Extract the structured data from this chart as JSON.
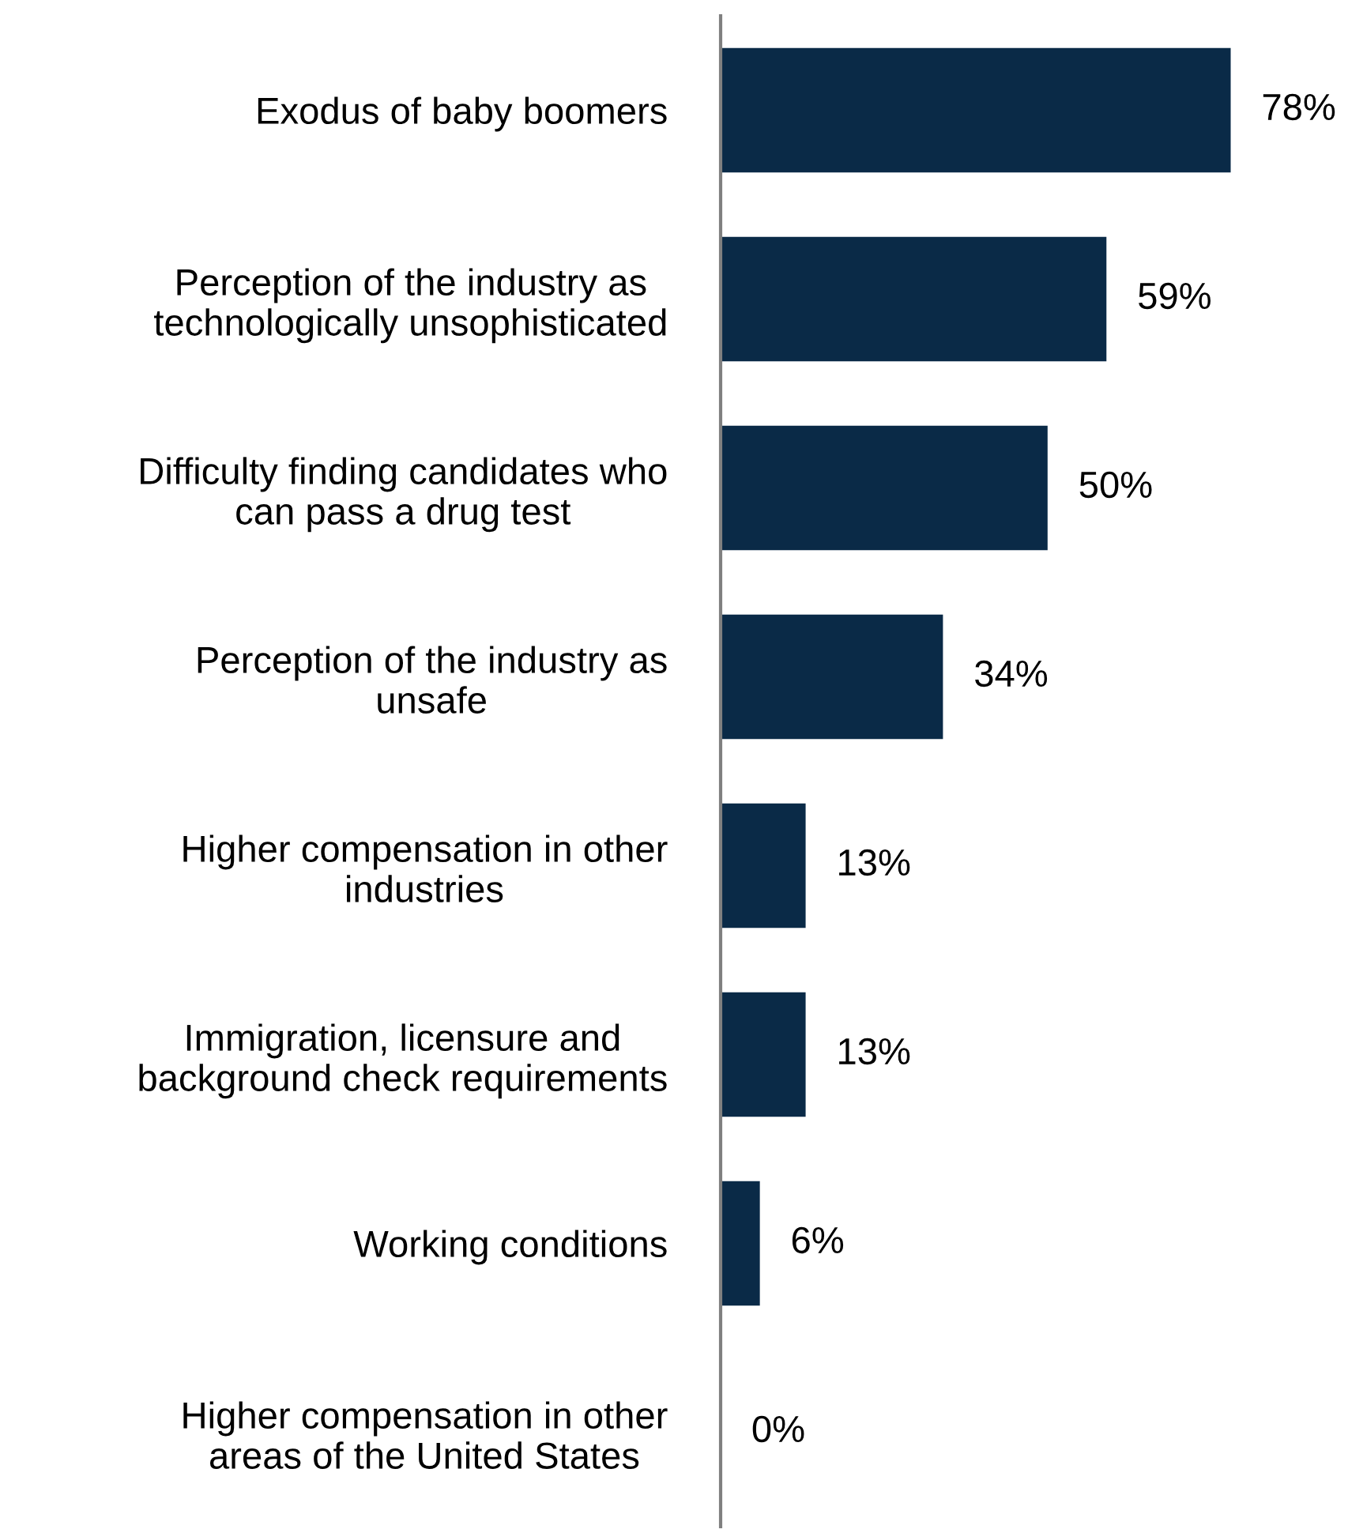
{
  "chart_data": {
    "type": "bar",
    "orientation": "horizontal",
    "categories": [
      "Exodus of baby boomers",
      "Perception of the industry as\ntechnologically unsophisticated",
      "Difficulty finding candidates who\ncan pass a drug test",
      "Perception of the industry as\nunsafe",
      "Higher compensation in other\nindustries",
      "Immigration, licensure and\nbackground check requirements",
      "Working conditions",
      "Higher compensation in other\nareas of the United States"
    ],
    "values": [
      78,
      59,
      50,
      34,
      13,
      13,
      6,
      0
    ],
    "value_labels": [
      "78%",
      "59%",
      "50%",
      "34%",
      "13%",
      "13%",
      "6%",
      "0%"
    ],
    "color": "#0a2a47",
    "grid": false,
    "legend": false
  }
}
